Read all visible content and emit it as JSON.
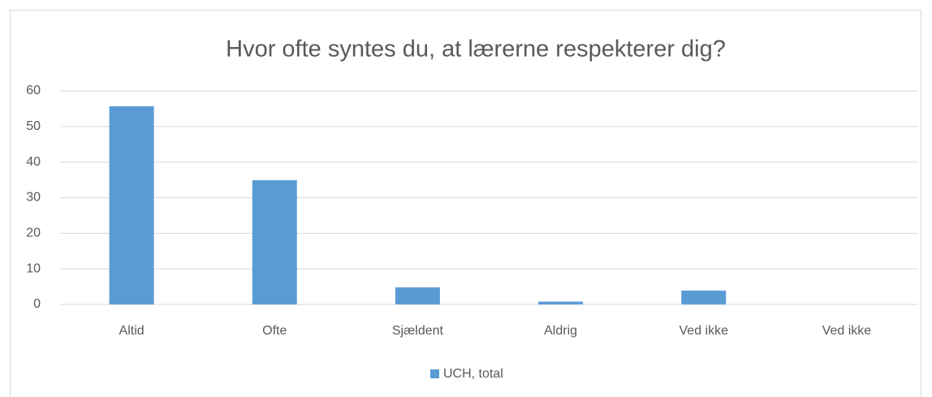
{
  "chart_data": {
    "type": "bar",
    "title": "Hvor ofte syntes du, at lærerne respekterer dig?",
    "categories": [
      "Altid",
      "Ofte",
      "Sjældent",
      "Aldrig",
      "Ved ikke",
      "Ved ikke"
    ],
    "series": [
      {
        "name": "UCH, total",
        "color": "#5b9bd5",
        "values": [
          55.7,
          34.9,
          4.8,
          0.8,
          3.9,
          0
        ]
      }
    ],
    "ylim": [
      0,
      60
    ],
    "yticks": [
      0,
      10,
      20,
      30,
      40,
      50,
      60
    ],
    "grid": true,
    "legend": "bottom"
  }
}
